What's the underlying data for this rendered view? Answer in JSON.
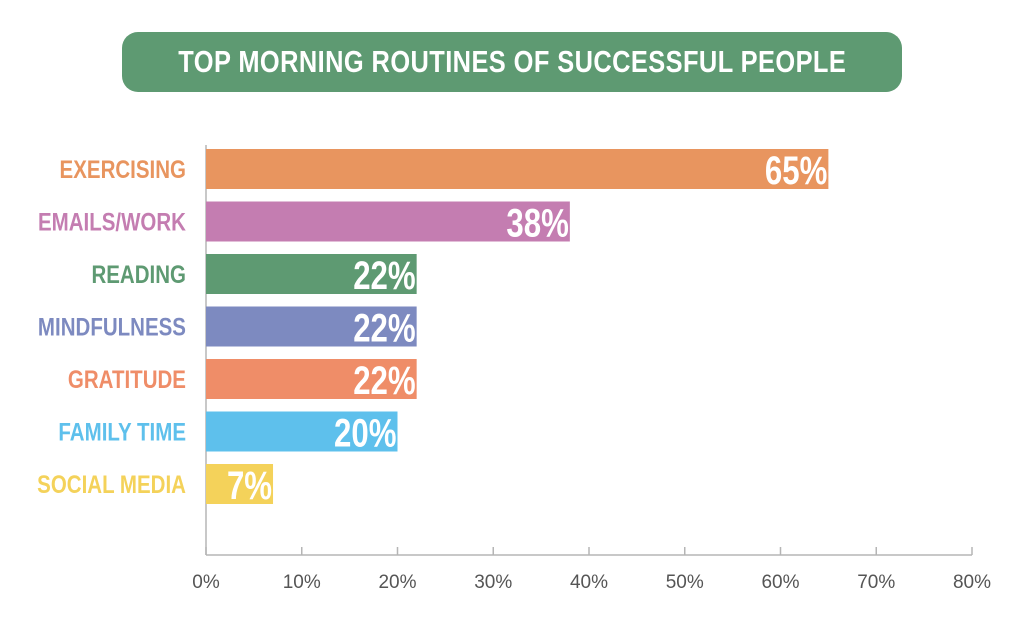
{
  "title": "TOP MORNING ROUTINES OF SUCCESSFUL PEOPLE",
  "chart_data": {
    "type": "bar",
    "orientation": "horizontal",
    "title": "TOP MORNING ROUTINES OF SUCCESSFUL PEOPLE",
    "xlabel": "",
    "ylabel": "",
    "categories": [
      "EXERCISING",
      "EMAILS/WORK",
      "READING",
      "MINDFULNESS",
      "GRATITUDE",
      "FAMILY TIME",
      "SOCIAL MEDIA"
    ],
    "values": [
      65,
      38,
      22,
      22,
      22,
      20,
      7
    ],
    "value_labels": [
      "65%",
      "38%",
      "22%",
      "22%",
      "22%",
      "20%",
      "7%"
    ],
    "colors": [
      "#e8955f",
      "#c47db1",
      "#5e9a72",
      "#7d8ac0",
      "#ef8d68",
      "#5ec0ec",
      "#f4d25a"
    ],
    "xlim": [
      0,
      80
    ],
    "ticks": [
      0,
      10,
      20,
      30,
      40,
      50,
      60,
      70,
      80
    ],
    "tick_labels": [
      "0%",
      "10%",
      "20%",
      "30%",
      "40%",
      "50%",
      "60%",
      "70%",
      "80%"
    ],
    "grid": false,
    "legend": "none"
  }
}
